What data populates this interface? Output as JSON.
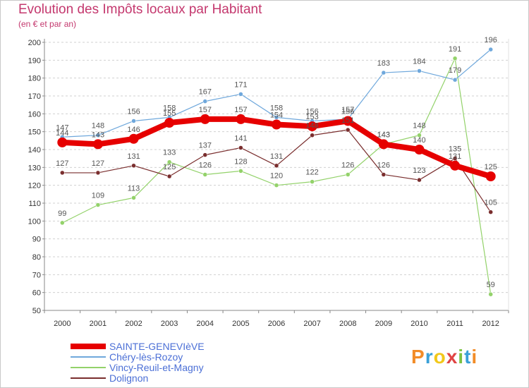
{
  "header": {
    "title": "Evolution des Impôts locaux par Habitant",
    "subtitle": "(en € et par an)"
  },
  "chart_data": {
    "type": "line",
    "title": "Evolution des Impôts locaux par Habitant",
    "subtitle": "(en € et par an)",
    "xlabel": "",
    "ylabel": "",
    "x": [
      2000,
      2001,
      2002,
      2003,
      2004,
      2005,
      2006,
      2007,
      2008,
      2009,
      2010,
      2011,
      2012
    ],
    "ylim": [
      50,
      200
    ],
    "yticks": [
      50,
      60,
      70,
      80,
      90,
      100,
      110,
      120,
      130,
      140,
      150,
      160,
      170,
      180,
      190,
      200
    ],
    "grid": "horizontal dashed",
    "legend_position": "bottom-left",
    "series": [
      {
        "name": "SAINTE-GENEVIèVE",
        "color": "#e60000",
        "values": [
          144,
          143,
          146,
          155,
          157,
          157,
          154,
          153,
          156,
          143,
          140,
          131,
          125
        ]
      },
      {
        "name": "Chéry-lès-Rozoy",
        "color": "#6fa8dc",
        "values": [
          147,
          148,
          156,
          158,
          167,
          171,
          158,
          156,
          157,
          183,
          184,
          179,
          196
        ]
      },
      {
        "name": "Vincy-Reuil-et-Magny",
        "color": "#93d26a",
        "values": [
          99,
          109,
          113,
          133,
          126,
          128,
          120,
          122,
          126,
          143,
          148,
          191,
          59
        ]
      },
      {
        "name": "Dolignon",
        "color": "#7a2e2e",
        "values": [
          127,
          127,
          131,
          125,
          137,
          141,
          131,
          148,
          151,
          126,
          123,
          135,
          105
        ]
      }
    ]
  },
  "logo": {
    "letters": [
      "P",
      "r",
      "o",
      "x",
      "i",
      "t",
      "i"
    ],
    "colors": [
      "#f28c28",
      "#3aa0d8",
      "#f2c81a",
      "#e04444",
      "#7cc242",
      "#3aa0d8",
      "#f28c28"
    ]
  }
}
